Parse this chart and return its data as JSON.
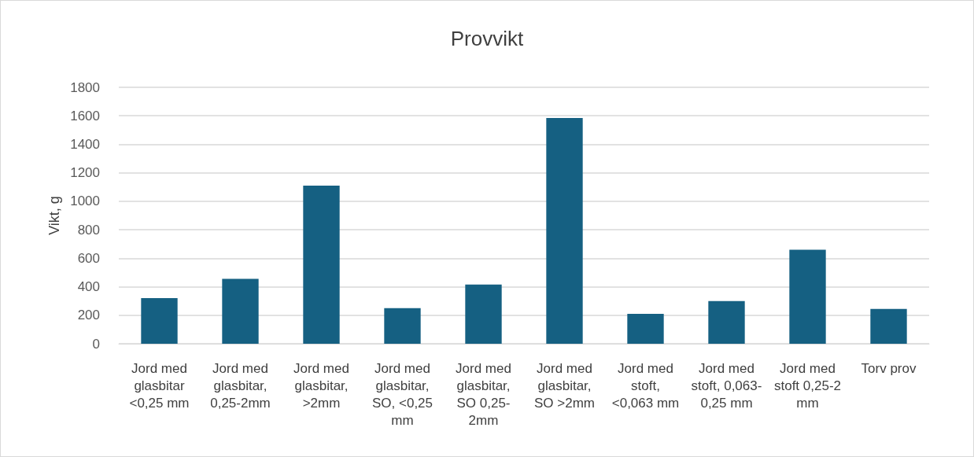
{
  "chart_data": {
    "type": "bar",
    "title": "Provvikt",
    "ylabel": "Vikt, g",
    "categories": [
      "Jord med glasbitar <0,25 mm",
      "Jord med glasbitar, 0,25-2mm",
      "Jord med glasbitar, >2mm",
      "Jord med glasbitar, SO, <0,25 mm",
      "Jord med glasbitar, SO 0,25-2mm",
      "Jord med glasbitar, SO >2mm",
      "Jord med stoft, <0,063 mm",
      "Jord med stoft, 0,063-0,25 mm",
      "Jord med stoft 0,25-2 mm",
      "Torv prov"
    ],
    "values": [
      320,
      455,
      1110,
      250,
      415,
      1585,
      210,
      300,
      660,
      245
    ],
    "color": "#156082",
    "ylim": [
      0,
      1800
    ],
    "yticks": [
      0,
      200,
      400,
      600,
      800,
      1000,
      1200,
      1400,
      1600,
      1800
    ],
    "grid": "y"
  }
}
